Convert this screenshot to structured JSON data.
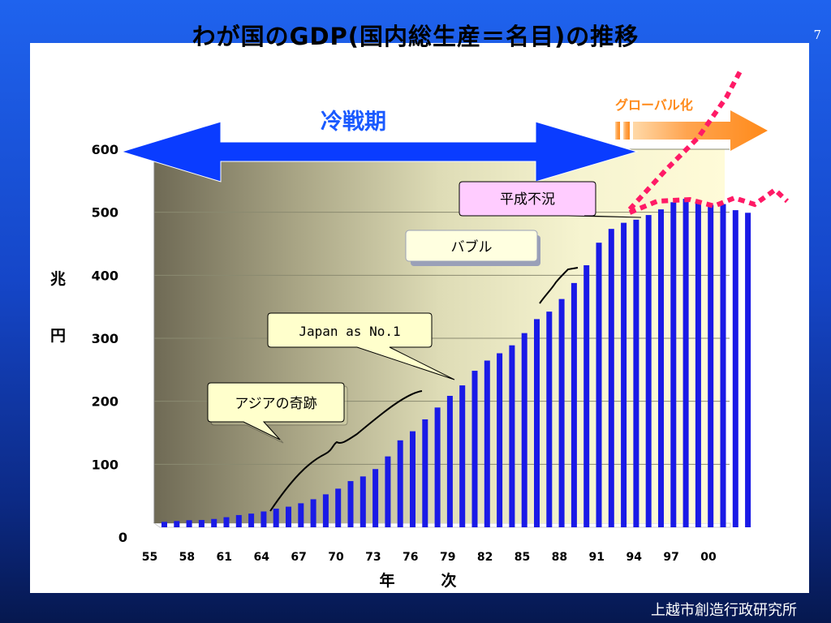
{
  "page_number": "7",
  "footer": "上越市創造行政研究所",
  "title": "わが国のGDP(国内総生産＝名目)の推移",
  "eras": {
    "cold_war": "冷戦期",
    "globalization": "グローバル化"
  },
  "annotations": {
    "asia_miracle": "アジアの奇跡",
    "japan_no1": "Japan as No.1",
    "bubble": "バブル",
    "heisei_recession": "平成不況"
  },
  "colors": {
    "bars": "#1a1ae6",
    "cold_war_arrow": "#0a3cff",
    "globalization_arrow": "#ff9b3d",
    "dashed_lines": "#ff1a66"
  },
  "chart_data": {
    "type": "bar",
    "title": "わが国のGDP(国内総生産＝名目)の推移",
    "xlabel": "年　　　次",
    "ylabel": "兆 円",
    "ylim": [
      0,
      600
    ],
    "yticks": [
      "0",
      "100",
      "200",
      "300",
      "400",
      "500",
      "600"
    ],
    "xtick_labels": [
      "55",
      "58",
      "61",
      "64",
      "67",
      "70",
      "73",
      "76",
      "79",
      "82",
      "85",
      "88",
      "91",
      "94",
      "97",
      "00"
    ],
    "categories": [
      "55",
      "56",
      "57",
      "58",
      "59",
      "60",
      "61",
      "62",
      "63",
      "64",
      "65",
      "66",
      "67",
      "68",
      "69",
      "70",
      "71",
      "72",
      "73",
      "74",
      "75",
      "76",
      "77",
      "78",
      "79",
      "80",
      "81",
      "82",
      "83",
      "84",
      "85",
      "86",
      "87",
      "88",
      "89",
      "90",
      "91",
      "92",
      "93",
      "94",
      "95",
      "96",
      "97",
      "98",
      "99",
      "00",
      "01",
      "02"
    ],
    "values": [
      8.6,
      9.9,
      11.2,
      11.6,
      13.2,
      16.0,
      19.4,
      21.7,
      25.1,
      29.5,
      32.7,
      38.1,
      44.5,
      52.3,
      61.3,
      73.3,
      80.7,
      92.4,
      112.5,
      138.0,
      152.4,
      171.3,
      190.1,
      208.6,
      225.2,
      248.4,
      264.6,
      276.2,
      288.8,
      308.2,
      330.4,
      342.3,
      362.3,
      387.7,
      415.9,
      451.7,
      473.6,
      483.3,
      488.2,
      495.6,
      504.6,
      515.9,
      521.3,
      515.8,
      511.8,
      513.0,
      503.3,
      499.2
    ],
    "grid": true
  }
}
